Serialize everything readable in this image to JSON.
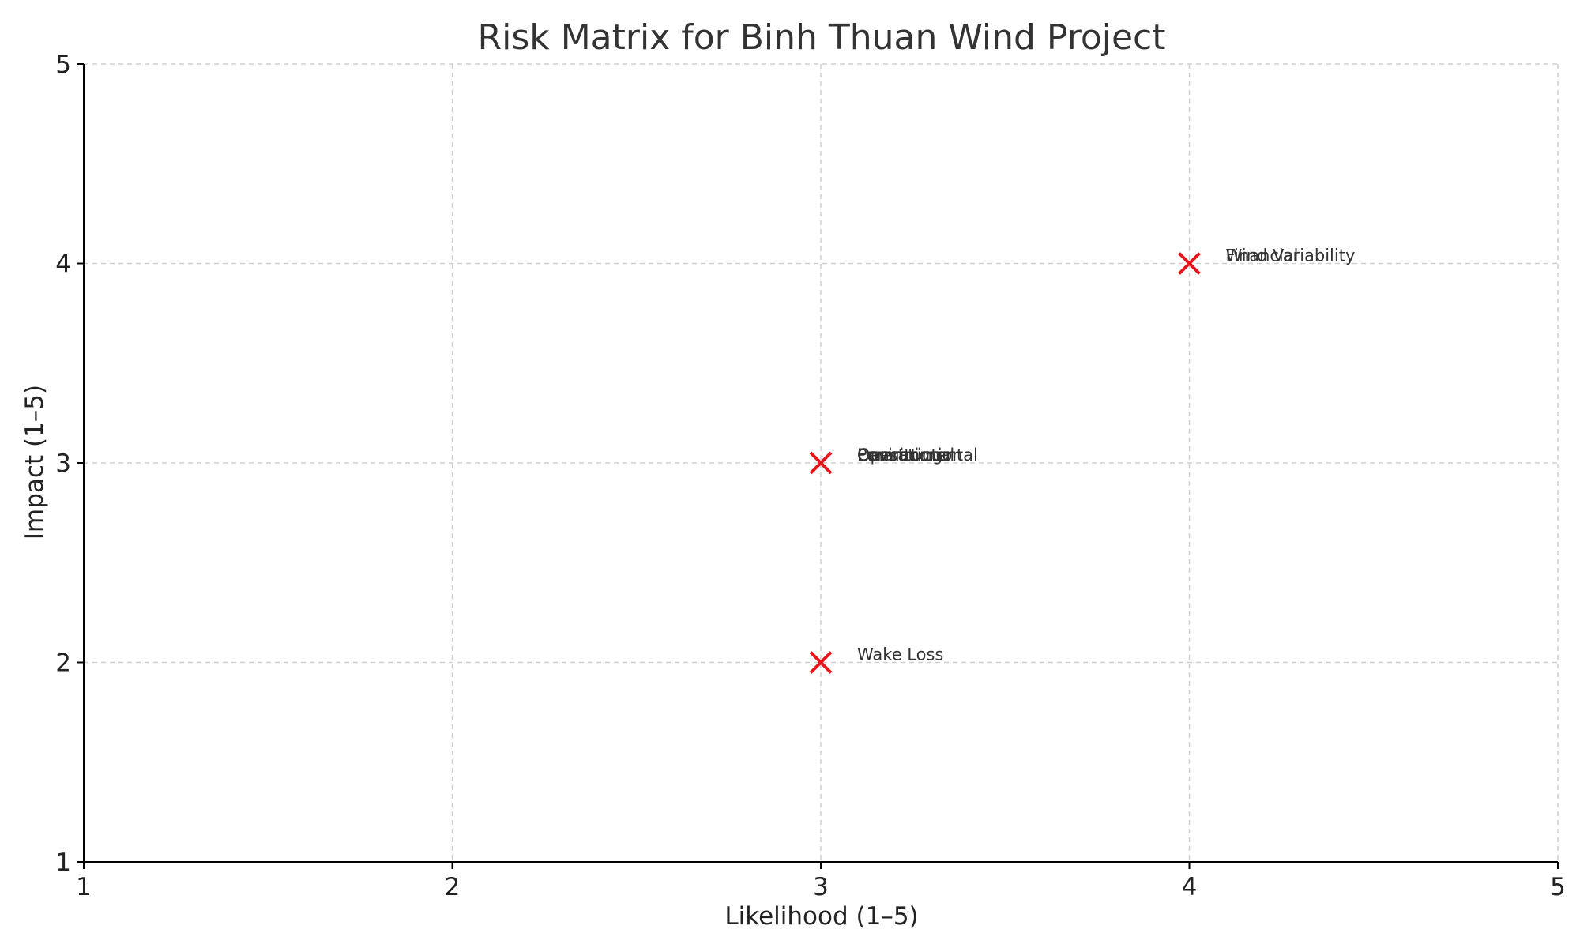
{
  "chart_data": {
    "type": "scatter",
    "title": "Risk Matrix for Binh Thuan Wind Project",
    "xlabel": "Likelihood (1–5)",
    "ylabel": "Impact (1–5)",
    "xlim": [
      1,
      5
    ],
    "ylim": [
      1,
      5
    ],
    "xticks": [
      1,
      2,
      3,
      4,
      5
    ],
    "yticks": [
      1,
      2,
      3,
      4,
      5
    ],
    "grid": true,
    "marker": "x",
    "marker_color": "#e8141c",
    "points": [
      {
        "label": "Wind Variability",
        "x": 4,
        "y": 4
      },
      {
        "label": "Financial",
        "x": 4,
        "y": 4
      },
      {
        "label": "Construction",
        "x": 3,
        "y": 3
      },
      {
        "label": "Environmental",
        "x": 3,
        "y": 3
      },
      {
        "label": "Permitting",
        "x": 3,
        "y": 3
      },
      {
        "label": "Operational",
        "x": 3,
        "y": 3
      },
      {
        "label": "Wake Loss",
        "x": 3,
        "y": 2
      }
    ]
  }
}
